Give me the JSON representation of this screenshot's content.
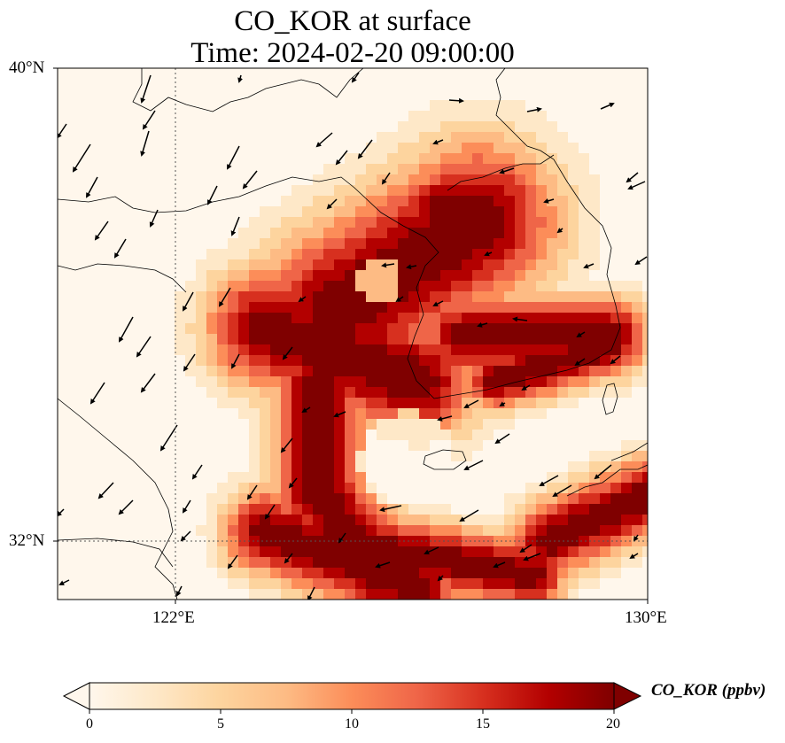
{
  "title": {
    "line1": "CO_KOR at surface",
    "line2": "Time: 2024-02-20 09:00:00"
  },
  "axes": {
    "lat_labels": [
      "40°N",
      "32°N"
    ],
    "lon_labels": [
      "122°E",
      "130°E"
    ],
    "lat_range": [
      31,
      40
    ],
    "lon_range": [
      120,
      130
    ],
    "gridlines": "dotted",
    "gridline_lat": 32,
    "gridline_lon": 122
  },
  "colorbar": {
    "label": "CO_KOR (ppbv)",
    "ticks": [
      "0",
      "5",
      "10",
      "15",
      "20"
    ],
    "range": [
      0,
      20
    ],
    "extend": "both",
    "colormap": "OrRd",
    "colors": [
      "#fff7ec",
      "#fee8c8",
      "#fdd49e",
      "#fdbb84",
      "#fc8d59",
      "#ef6548",
      "#d7301f",
      "#b30000",
      "#7f0000"
    ]
  },
  "map_features": [
    "coastline",
    "country-borders",
    "wind-vectors",
    "concentration-field"
  ]
}
